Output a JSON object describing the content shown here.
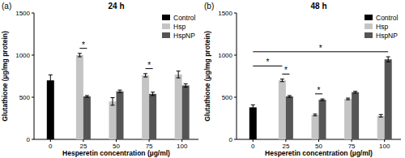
{
  "chart_data": [
    {
      "type": "bar",
      "panel_label": "(a)",
      "title": "24 h",
      "x_label": "Hesperetin concentration (µg/ml)",
      "y_label": "Glutathione (µg/mg protein)",
      "categories": [
        "0",
        "25",
        "50",
        "75",
        "100"
      ],
      "series": [
        {
          "name": "Control",
          "color": "#000000",
          "values": [
            700,
            null,
            null,
            null,
            null
          ],
          "errors": [
            65,
            null,
            null,
            null,
            null
          ]
        },
        {
          "name": "Hsp",
          "color": "#c4c4c4",
          "values": [
            null,
            1000,
            450,
            760,
            770
          ],
          "errors": [
            null,
            20,
            45,
            20,
            40
          ]
        },
        {
          "name": "HspNP",
          "color": "#555555",
          "values": [
            null,
            510,
            570,
            540,
            640
          ],
          "errors": [
            null,
            10,
            15,
            20,
            20
          ]
        }
      ],
      "ylim": [
        0,
        1500
      ],
      "yticks": [
        0,
        500,
        1000,
        1500
      ],
      "legend": "upper right",
      "annotations": [
        {
          "text": "*",
          "from": {
            "series": 1,
            "index": 1
          },
          "to": {
            "series": 2,
            "index": 1
          }
        },
        {
          "text": "*",
          "from": {
            "series": 1,
            "index": 3
          },
          "to": {
            "series": 2,
            "index": 3
          }
        }
      ]
    },
    {
      "type": "bar",
      "panel_label": "(b)",
      "title": "48 h",
      "x_label": "Hesperetin concentration (µg/ml)",
      "y_label": "Glutathione (µg/mg protein)",
      "categories": [
        "0",
        "25",
        "50",
        "75",
        "100"
      ],
      "series": [
        {
          "name": "Control",
          "color": "#000000",
          "values": [
            380,
            null,
            null,
            null,
            null
          ],
          "errors": [
            30,
            null,
            null,
            null,
            null
          ]
        },
        {
          "name": "Hsp",
          "color": "#c4c4c4",
          "values": [
            null,
            700,
            290,
            480,
            280
          ],
          "errors": [
            null,
            15,
            10,
            10,
            15
          ]
        },
        {
          "name": "HspNP",
          "color": "#555555",
          "values": [
            null,
            510,
            470,
            560,
            950
          ],
          "errors": [
            null,
            10,
            10,
            10,
            30
          ]
        }
      ],
      "ylim": [
        0,
        1500
      ],
      "yticks": [
        0,
        500,
        1000,
        1500
      ],
      "legend": "upper right",
      "annotations": [
        {
          "text": "*",
          "from": {
            "series": 0,
            "index": 0
          },
          "to": {
            "series": 1,
            "index": 1
          }
        },
        {
          "text": "*",
          "from": {
            "series": 1,
            "index": 1
          },
          "to": {
            "series": 2,
            "index": 1
          }
        },
        {
          "text": "*",
          "from": {
            "series": 1,
            "index": 2
          },
          "to": {
            "series": 2,
            "index": 2
          }
        },
        {
          "text": "*",
          "from": {
            "series": 0,
            "index": 0
          },
          "to": {
            "series": 2,
            "index": 4
          }
        }
      ]
    }
  ]
}
